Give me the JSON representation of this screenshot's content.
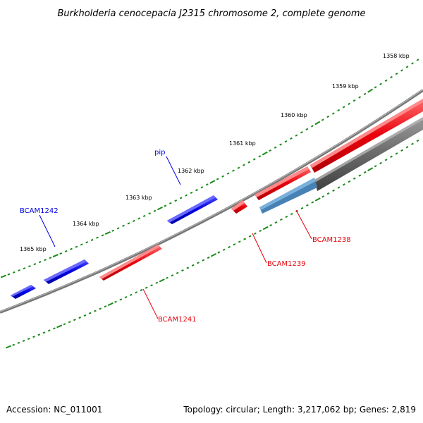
{
  "title": "Burkholderia cenocepacia J2315 chromosome 2, complete genome",
  "footer": {
    "accession": "Accession: NC_011001",
    "stats": "Topology: circular; Length: 3,217,062 bp; Genes: 2,819"
  },
  "ruler": {
    "labels": [
      "1358 kbp",
      "1359 kbp",
      "1360 kbp",
      "1361 kbp",
      "1362 kbp",
      "1363 kbp",
      "1364 kbp",
      "1365 kbp"
    ]
  },
  "genes": [
    {
      "label": "BCAM1238",
      "strand": "reverse",
      "color": "#e8000b"
    },
    {
      "label": "BCAM1239",
      "strand": "reverse",
      "color": "#e8000b"
    },
    {
      "label": "BCAM1241",
      "strand": "reverse",
      "color": "#e8000b"
    },
    {
      "label": "pip",
      "strand": "forward",
      "color": "#0000e0"
    },
    {
      "label": "BCAM1242",
      "strand": "forward",
      "color": "#0000e0"
    }
  ],
  "colors": {
    "forward_gene": "#0000e0",
    "reverse_gene": "#e8000b",
    "backbone": "#7a7a7a",
    "highlight_region": "#6a6a6a",
    "ticks": "#1a8a1a"
  }
}
